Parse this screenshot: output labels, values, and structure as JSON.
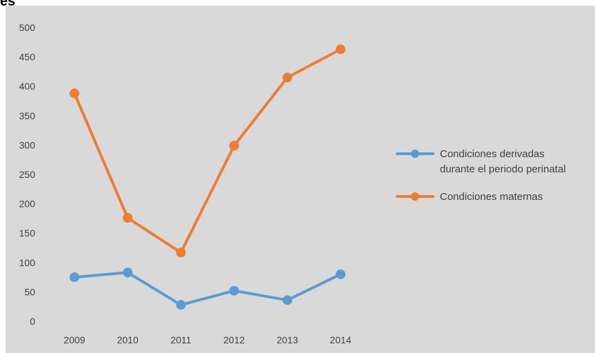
{
  "corner_mark": "es",
  "chart_data": {
    "type": "line",
    "title": "",
    "xlabel": "",
    "ylabel": "",
    "categories": [
      "2009",
      "2010",
      "2011",
      "2012",
      "2013",
      "2014"
    ],
    "ylim": [
      0,
      500
    ],
    "yticks": [
      0,
      50,
      100,
      150,
      200,
      250,
      300,
      350,
      400,
      450,
      500
    ],
    "grid": false,
    "legend_position": "right",
    "series": [
      {
        "name": "Condiciones derivadas durante el periodo perinatal",
        "legend_lines": [
          "Condiciones derivadas",
          "durante el periodo perinatal"
        ],
        "color": "#5b9bd5",
        "values": [
          75,
          83,
          28,
          52,
          36,
          80
        ]
      },
      {
        "name": "Condiciones maternas",
        "legend_lines": [
          "Condiciones maternas"
        ],
        "color": "#ed7d31",
        "values": [
          388,
          176,
          117,
          299,
          415,
          463
        ]
      }
    ]
  }
}
